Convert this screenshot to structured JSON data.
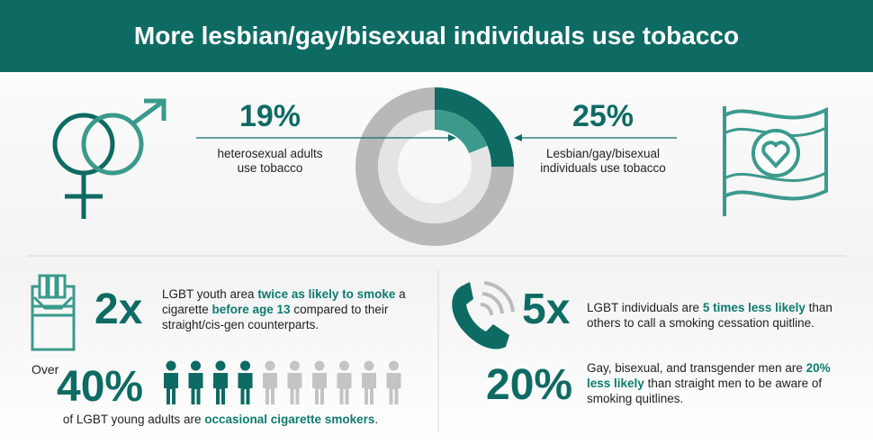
{
  "header": {
    "title": "More lesbian/gay/bisexual individuals use tobacco"
  },
  "comparison": {
    "left": {
      "value": 19,
      "value_label": "19%",
      "lines": [
        "heterosexual adults",
        "use tobacco"
      ]
    },
    "right": {
      "value": 25,
      "value_label": "25%",
      "lines": [
        "Lesbian/gay/bisexual",
        "individuals use tobacco"
      ]
    }
  },
  "youth": {
    "multiplier": "2x",
    "segments": [
      {
        "text": "LGBT youth area ",
        "emphasis": false
      },
      {
        "text": "twice as likely to smoke",
        "emphasis": true
      },
      {
        "text": " a cigarette ",
        "emphasis": false
      },
      {
        "text": "before age 13",
        "emphasis": true
      },
      {
        "text": " compared to their straight/cis-gen counterparts.",
        "emphasis": false
      }
    ]
  },
  "young_adults": {
    "prefix": "Over",
    "value": 40,
    "value_label": "40%",
    "segments": [
      {
        "text": "of LGBT young adults are ",
        "emphasis": false
      },
      {
        "text": "occasional cigarette smokers",
        "emphasis": true
      },
      {
        "text": ".",
        "emphasis": false
      }
    ]
  },
  "quitline": {
    "multiplier": "5x",
    "segments": [
      {
        "text": "LGBT individuals are ",
        "emphasis": false
      },
      {
        "text": "5 times less likely",
        "emphasis": true
      },
      {
        "text": " than others to call a smoking cessation quitline.",
        "emphasis": false
      }
    ]
  },
  "men": {
    "value": 20,
    "value_label": "20%",
    "segments": [
      {
        "text": "Gay, bisexual, and transgender men are ",
        "emphasis": false
      },
      {
        "text": "20% less likely",
        "emphasis": true
      },
      {
        "text": " than straight men to be aware of smoking quitlines.",
        "emphasis": false
      }
    ]
  }
}
